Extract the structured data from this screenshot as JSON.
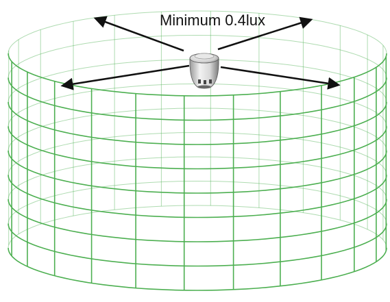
{
  "diagram": {
    "label": "Minimum 0.4lux",
    "device_icon": "ceiling-sensor-icon",
    "grid_color": "#4caf50",
    "arrow_color": "#111111",
    "arrow_count": 4
  }
}
